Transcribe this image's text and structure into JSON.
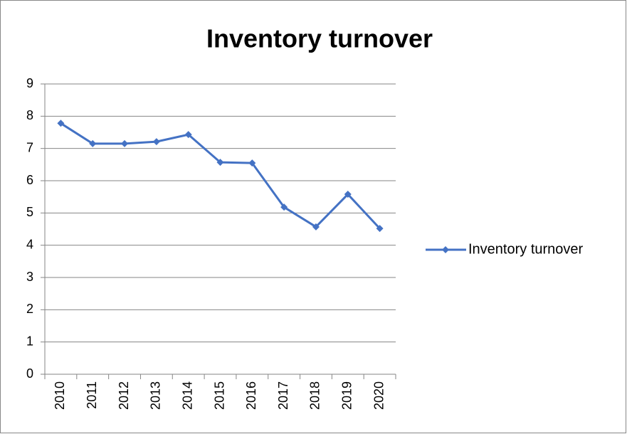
{
  "chart_data": {
    "type": "line",
    "title": "Inventory turnover",
    "categories": [
      "2010",
      "2011",
      "2012",
      "2013",
      "2014",
      "2015",
      "2016",
      "2017",
      "2018",
      "2019",
      "2020"
    ],
    "series": [
      {
        "name": "Inventory turnover",
        "color": "#4472c4",
        "values": [
          7.78,
          7.15,
          7.15,
          7.21,
          7.43,
          6.57,
          6.55,
          5.18,
          4.57,
          5.58,
          4.52
        ]
      }
    ],
    "ylim": [
      0,
      9
    ],
    "yticks": [
      0,
      1,
      2,
      3,
      4,
      5,
      6,
      7,
      8,
      9
    ],
    "grid": true,
    "legend": "right"
  }
}
